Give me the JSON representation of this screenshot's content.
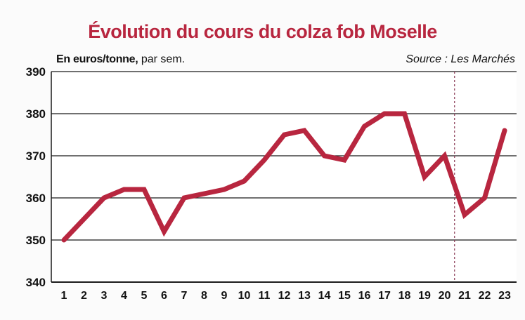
{
  "title": "Évolution du cours du colza fob Moselle",
  "unit_bold": "En euros/tonne,",
  "unit_rest": " par sem.",
  "source": "Source : Les Marchés",
  "colors": {
    "line": "#b8263f",
    "title": "#b8263f",
    "grid": "#1a1a1a"
  },
  "chart_data": {
    "type": "line",
    "title": "Évolution du cours du colza fob Moselle",
    "ylabel": "En euros/tonne, par sem.",
    "xlabel": "",
    "x": [
      1,
      2,
      3,
      4,
      5,
      6,
      7,
      8,
      9,
      10,
      11,
      12,
      13,
      14,
      15,
      16,
      17,
      18,
      19,
      20,
      21,
      22,
      23
    ],
    "values": [
      350,
      355,
      360,
      362,
      362,
      352,
      360,
      361,
      362,
      364,
      369,
      375,
      376,
      370,
      369,
      377,
      380,
      380,
      365,
      370,
      356,
      360,
      376
    ],
    "ylim": [
      340,
      390
    ],
    "yticks": [
      340,
      350,
      360,
      370,
      380,
      390
    ],
    "grid": "horizontal",
    "marker_line_after": 20
  }
}
